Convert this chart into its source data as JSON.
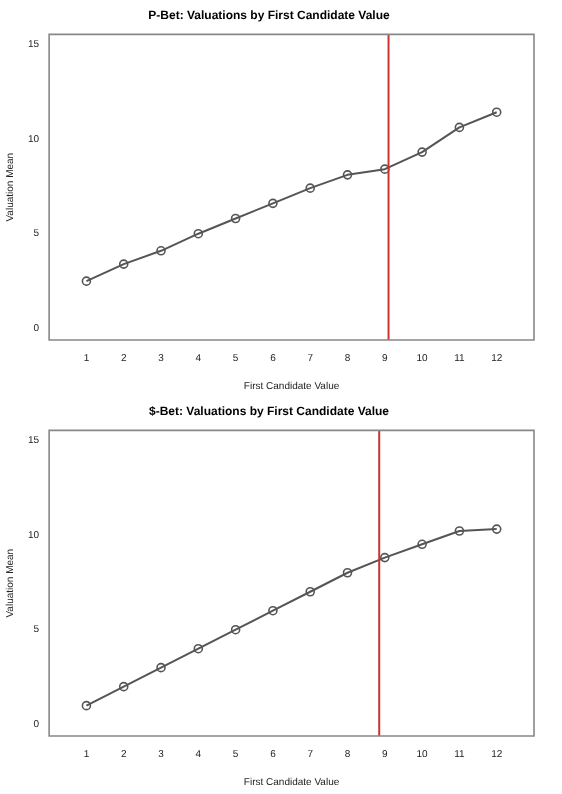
{
  "chart_data": [
    {
      "type": "line",
      "title": "P-Bet: Valuations by First Candidate Value",
      "xlabel": "First Candidate Value",
      "ylabel": "Valuation Mean",
      "x": [
        1,
        2,
        3,
        4,
        5,
        6,
        7,
        8,
        9,
        10,
        11,
        12
      ],
      "series": [
        {
          "color": "#555555",
          "values": [
            2.5,
            3.4,
            4.1,
            5.0,
            5.8,
            6.6,
            7.4,
            8.1,
            8.4,
            9.3,
            10.6,
            11.4
          ]
        }
      ],
      "xlim": [
        0,
        13
      ],
      "xticks": [
        1,
        2,
        3,
        4,
        5,
        6,
        7,
        8,
        9,
        10,
        11,
        12
      ],
      "ylim": [
        -0.6,
        15.5
      ],
      "yticks": [
        0,
        5,
        10,
        15
      ],
      "grid": false,
      "legend": false,
      "marker": "circle",
      "line_style": "solid",
      "ref_lines": [
        {
          "axis": "x",
          "value": 9.1,
          "color": "#cc3333"
        }
      ]
    },
    {
      "type": "line",
      "title": "$-Bet: Valuations by First Candidate Value",
      "xlabel": "First Candidate Value",
      "ylabel": "Valuation Mean",
      "x": [
        1,
        2,
        3,
        4,
        5,
        6,
        7,
        8,
        9,
        10,
        11,
        12
      ],
      "series": [
        {
          "color": "#555555",
          "values": [
            1.0,
            2.0,
            3.0,
            4.0,
            5.0,
            6.0,
            7.0,
            8.0,
            8.8,
            9.5,
            10.2,
            10.3
          ]
        }
      ],
      "xlim": [
        0,
        13
      ],
      "xticks": [
        1,
        2,
        3,
        4,
        5,
        6,
        7,
        8,
        9,
        10,
        11,
        12
      ],
      "ylim": [
        -0.6,
        15.5
      ],
      "yticks": [
        0,
        5,
        10,
        15
      ],
      "grid": false,
      "legend": false,
      "marker": "circle",
      "line_style": "solid",
      "ref_lines": [
        {
          "axis": "x",
          "value": 8.85,
          "color": "#cc3333"
        }
      ]
    }
  ]
}
